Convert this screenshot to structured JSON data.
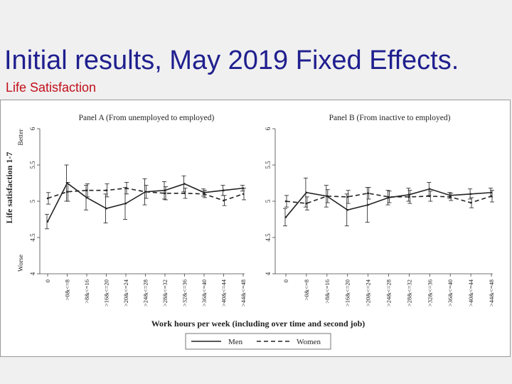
{
  "slide": {
    "title": "Initial results, May 2019 Fixed Effects.",
    "subtitle": "Life Satisfaction"
  },
  "colors": {
    "title": "#1f1f8f",
    "subtitle": "#c0101a",
    "line": "#222222",
    "background": "#f0f0f0"
  },
  "chart_data": [
    {
      "type": "line",
      "title": "Panel A (From unemployed to employed)",
      "categories": [
        "0",
        ">0&<=8",
        ">8&<=16",
        ">16&<=20",
        ">20&<=24",
        ">24&<=28",
        ">28&<=32",
        ">32&<=36",
        ">36&<=40",
        ">40&<=44",
        ">44&<=48"
      ],
      "ylabel": "Life satisfaction 1-7",
      "ylabel_top": "Better",
      "ylabel_bottom": "Worse",
      "xlabel": "Work hours per week (including over time and second job)",
      "ylim": [
        4,
        6
      ],
      "yticks": [
        "4",
        "4.5",
        "5",
        "5.5",
        "6"
      ],
      "series": [
        {
          "name": "Men",
          "style": "solid",
          "values": [
            4.72,
            5.25,
            5.05,
            4.9,
            4.97,
            5.13,
            5.15,
            5.24,
            5.12,
            5.15,
            5.18
          ],
          "ci_low": [
            4.62,
            5.0,
            4.88,
            4.7,
            4.75,
            4.95,
            5.03,
            5.13,
            5.07,
            5.08,
            5.14
          ],
          "ci_high": [
            4.82,
            5.5,
            5.22,
            5.1,
            5.19,
            5.31,
            5.27,
            5.35,
            5.17,
            5.22,
            5.22
          ]
        },
        {
          "name": "Women",
          "style": "dashed",
          "values": [
            5.04,
            5.13,
            5.15,
            5.15,
            5.18,
            5.13,
            5.11,
            5.11,
            5.1,
            5.01,
            5.1
          ],
          "ci_low": [
            4.96,
            5.0,
            5.06,
            5.06,
            5.1,
            5.04,
            5.02,
            5.04,
            5.05,
            4.94,
            5.02
          ],
          "ci_high": [
            5.12,
            5.26,
            5.24,
            5.24,
            5.26,
            5.22,
            5.2,
            5.18,
            5.15,
            5.08,
            5.18
          ]
        }
      ]
    },
    {
      "type": "line",
      "title": "Panel B (From inactive to employed)",
      "categories": [
        "0",
        ">0&<=8",
        ">8&<=16",
        ">16&<=20",
        ">20&<=24",
        ">24&<=28",
        ">28&<=32",
        ">32&<=36",
        ">36&<=40",
        ">40&<=44",
        ">44&<=48"
      ],
      "ylim": [
        4,
        6
      ],
      "yticks": [
        "4",
        "4.5",
        "5",
        "5.5",
        "6"
      ],
      "series": [
        {
          "name": "Men",
          "style": "solid",
          "values": [
            4.78,
            5.12,
            5.07,
            4.88,
            4.95,
            5.05,
            5.09,
            5.17,
            5.08,
            5.1,
            5.12
          ],
          "ci_low": [
            4.66,
            4.92,
            4.92,
            4.66,
            4.71,
            4.95,
            5.0,
            5.08,
            5.04,
            5.03,
            5.06
          ],
          "ci_high": [
            4.9,
            5.32,
            5.22,
            5.1,
            5.19,
            5.15,
            5.18,
            5.26,
            5.12,
            5.17,
            5.18
          ]
        },
        {
          "name": "Women",
          "style": "dashed",
          "values": [
            5.0,
            4.97,
            5.07,
            5.06,
            5.11,
            5.06,
            5.06,
            5.07,
            5.06,
            4.98,
            5.07
          ],
          "ci_low": [
            4.92,
            4.88,
            4.98,
            4.97,
            5.03,
            4.98,
            4.97,
            5.0,
            5.01,
            4.91,
            4.99
          ],
          "ci_high": [
            5.08,
            5.06,
            5.16,
            5.15,
            5.19,
            5.14,
            5.15,
            5.14,
            5.11,
            5.05,
            5.15
          ]
        }
      ]
    }
  ],
  "legend": [
    {
      "label": "Men",
      "style": "solid"
    },
    {
      "label": "Women",
      "style": "dashed"
    }
  ]
}
